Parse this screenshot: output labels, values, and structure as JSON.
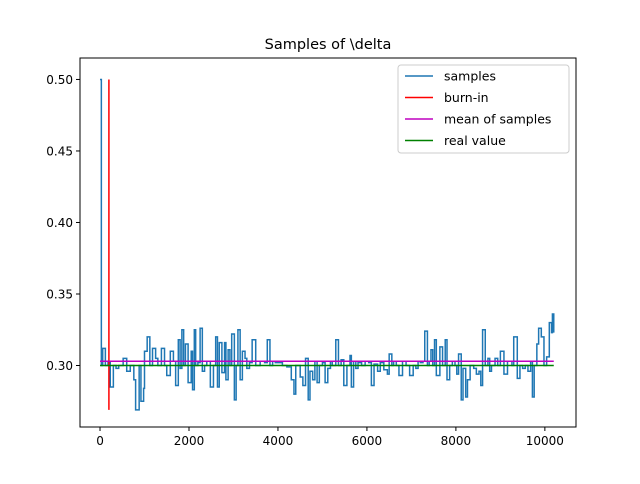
{
  "chart_data": {
    "type": "line",
    "title": "Samples of \\delta",
    "xlabel": "",
    "ylabel": "",
    "xlim": [
      -450,
      10700
    ],
    "ylim": [
      0.257,
      0.515
    ],
    "x_ticks": [
      0,
      2000,
      4000,
      6000,
      8000,
      10000
    ],
    "x_tick_labels": [
      "0",
      "2000",
      "4000",
      "6000",
      "8000",
      "10000"
    ],
    "y_ticks": [
      0.3,
      0.35,
      0.4,
      0.45,
      0.5
    ],
    "y_tick_labels": [
      "0.30",
      "0.35",
      "0.40",
      "0.45",
      "0.50"
    ],
    "grid": false,
    "legend_position": "top-right",
    "colors": {
      "samples": "#1f77b4",
      "burn_in": "#ff0000",
      "mean": "#bf00bf",
      "real": "#008000"
    },
    "series": [
      {
        "name": "samples",
        "color": "#1f77b4",
        "step": true,
        "points": [
          [
            0,
            0.5
          ],
          [
            30,
            0.3
          ],
          [
            60,
            0.312
          ],
          [
            120,
            0.3
          ],
          [
            180,
            0.302
          ],
          [
            230,
            0.285
          ],
          [
            300,
            0.3
          ],
          [
            360,
            0.298
          ],
          [
            420,
            0.3
          ],
          [
            520,
            0.305
          ],
          [
            600,
            0.296
          ],
          [
            680,
            0.3
          ],
          [
            760,
            0.29
          ],
          [
            800,
            0.269
          ],
          [
            880,
            0.3
          ],
          [
            920,
            0.275
          ],
          [
            980,
            0.284
          ],
          [
            1000,
            0.31
          ],
          [
            1060,
            0.32
          ],
          [
            1120,
            0.3
          ],
          [
            1180,
            0.312
          ],
          [
            1250,
            0.305
          ],
          [
            1300,
            0.3
          ],
          [
            1380,
            0.312
          ],
          [
            1450,
            0.3
          ],
          [
            1500,
            0.293
          ],
          [
            1580,
            0.31
          ],
          [
            1650,
            0.303
          ],
          [
            1700,
            0.286
          ],
          [
            1760,
            0.318
          ],
          [
            1800,
            0.298
          ],
          [
            1840,
            0.325
          ],
          [
            1880,
            0.3
          ],
          [
            1920,
            0.315
          ],
          [
            1980,
            0.288
          ],
          [
            2050,
            0.31
          ],
          [
            2080,
            0.283
          ],
          [
            2120,
            0.325
          ],
          [
            2150,
            0.3
          ],
          [
            2200,
            0.302
          ],
          [
            2250,
            0.326
          ],
          [
            2300,
            0.296
          ],
          [
            2350,
            0.3
          ],
          [
            2400,
            0.303
          ],
          [
            2480,
            0.285
          ],
          [
            2550,
            0.3
          ],
          [
            2600,
            0.32
          ],
          [
            2640,
            0.285
          ],
          [
            2680,
            0.316
          ],
          [
            2740,
            0.295
          ],
          [
            2800,
            0.316
          ],
          [
            2830,
            0.29
          ],
          [
            2880,
            0.311
          ],
          [
            2920,
            0.3
          ],
          [
            2960,
            0.322
          ],
          [
            3020,
            0.276
          ],
          [
            3060,
            0.3
          ],
          [
            3100,
            0.325
          ],
          [
            3150,
            0.29
          ],
          [
            3200,
            0.31
          ],
          [
            3260,
            0.305
          ],
          [
            3300,
            0.298
          ],
          [
            3360,
            0.302
          ],
          [
            3420,
            0.318
          ],
          [
            3500,
            0.3
          ],
          [
            3600,
            0.303
          ],
          [
            3700,
            0.302
          ],
          [
            3760,
            0.318
          ],
          [
            3820,
            0.3
          ],
          [
            3880,
            0.303
          ],
          [
            3940,
            0.302
          ],
          [
            4100,
            0.3
          ],
          [
            4200,
            0.299
          ],
          [
            4300,
            0.29
          ],
          [
            4360,
            0.28
          ],
          [
            4400,
            0.3
          ],
          [
            4500,
            0.292
          ],
          [
            4560,
            0.286
          ],
          [
            4620,
            0.305
          ],
          [
            4680,
            0.276
          ],
          [
            4720,
            0.296
          ],
          [
            4780,
            0.29
          ],
          [
            4830,
            0.303
          ],
          [
            4880,
            0.288
          ],
          [
            4930,
            0.3
          ],
          [
            5000,
            0.302
          ],
          [
            5060,
            0.288
          ],
          [
            5120,
            0.298
          ],
          [
            5180,
            0.303
          ],
          [
            5220,
            0.3
          ],
          [
            5300,
            0.318
          ],
          [
            5360,
            0.3
          ],
          [
            5420,
            0.304
          ],
          [
            5480,
            0.286
          ],
          [
            5550,
            0.3
          ],
          [
            5620,
            0.307
          ],
          [
            5650,
            0.285
          ],
          [
            5700,
            0.303
          ],
          [
            5750,
            0.298
          ],
          [
            5800,
            0.302
          ],
          [
            5880,
            0.3
          ],
          [
            5960,
            0.303
          ],
          [
            6040,
            0.302
          ],
          [
            6100,
            0.286
          ],
          [
            6160,
            0.301
          ],
          [
            6240,
            0.296
          ],
          [
            6300,
            0.302
          ],
          [
            6380,
            0.297
          ],
          [
            6460,
            0.294
          ],
          [
            6500,
            0.308
          ],
          [
            6560,
            0.3
          ],
          [
            6600,
            0.303
          ],
          [
            6660,
            0.3
          ],
          [
            6720,
            0.293
          ],
          [
            6800,
            0.303
          ],
          [
            6880,
            0.3
          ],
          [
            6960,
            0.293
          ],
          [
            7040,
            0.3
          ],
          [
            7100,
            0.298
          ],
          [
            7150,
            0.303
          ],
          [
            7200,
            0.302
          ],
          [
            7260,
            0.303
          ],
          [
            7300,
            0.324
          ],
          [
            7360,
            0.3
          ],
          [
            7400,
            0.303
          ],
          [
            7440,
            0.311
          ],
          [
            7480,
            0.3
          ],
          [
            7520,
            0.318
          ],
          [
            7560,
            0.293
          ],
          [
            7640,
            0.313
          ],
          [
            7700,
            0.3
          ],
          [
            7760,
            0.318
          ],
          [
            7800,
            0.29
          ],
          [
            7860,
            0.3
          ],
          [
            7920,
            0.303
          ],
          [
            7980,
            0.3
          ],
          [
            8020,
            0.294
          ],
          [
            8060,
            0.308
          ],
          [
            8120,
            0.276
          ],
          [
            8160,
            0.298
          ],
          [
            8220,
            0.278
          ],
          [
            8260,
            0.29
          ],
          [
            8320,
            0.3
          ],
          [
            8400,
            0.298
          ],
          [
            8460,
            0.294
          ],
          [
            8520,
            0.296
          ],
          [
            8560,
            0.286
          ],
          [
            8600,
            0.325
          ],
          [
            8660,
            0.3
          ],
          [
            8720,
            0.305
          ],
          [
            8760,
            0.296
          ],
          [
            8800,
            0.3
          ],
          [
            8880,
            0.305
          ],
          [
            8940,
            0.3
          ],
          [
            9000,
            0.31
          ],
          [
            9080,
            0.294
          ],
          [
            9160,
            0.303
          ],
          [
            9260,
            0.3
          ],
          [
            9300,
            0.32
          ],
          [
            9380,
            0.291
          ],
          [
            9440,
            0.3
          ],
          [
            9500,
            0.298
          ],
          [
            9560,
            0.3
          ],
          [
            9620,
            0.296
          ],
          [
            9680,
            0.303
          ],
          [
            9720,
            0.278
          ],
          [
            9760,
            0.3
          ],
          [
            9820,
            0.315
          ],
          [
            9860,
            0.326
          ],
          [
            9920,
            0.32
          ],
          [
            9980,
            0.3
          ],
          [
            10040,
            0.306
          ],
          [
            10100,
            0.33
          ],
          [
            10150,
            0.323
          ],
          [
            10170,
            0.336
          ],
          [
            10200,
            0.323
          ]
        ]
      },
      {
        "name": "burn-in",
        "color": "#ff0000",
        "x": [
          200,
          200
        ],
        "y": [
          0.269,
          0.5
        ]
      },
      {
        "name": "mean of samples",
        "color": "#bf00bf",
        "x": [
          0,
          10200
        ],
        "y": [
          0.303,
          0.303
        ]
      },
      {
        "name": "real value",
        "color": "#008000",
        "x": [
          0,
          10200
        ],
        "y": [
          0.3,
          0.3
        ]
      }
    ]
  }
}
